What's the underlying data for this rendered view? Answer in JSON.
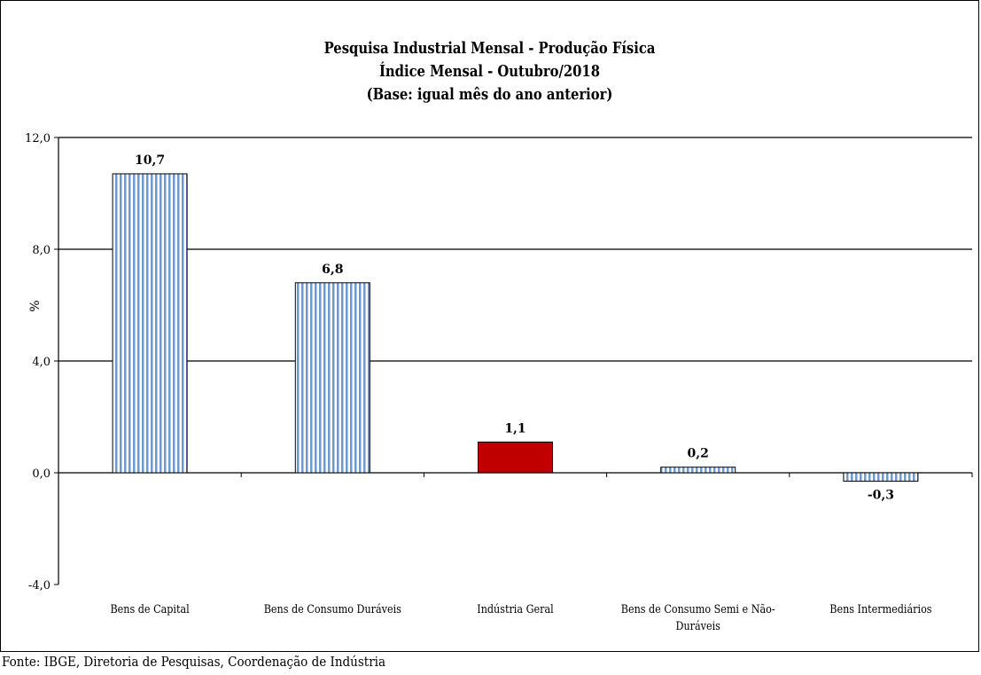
{
  "chart_data": {
    "type": "bar",
    "title": "Pesquisa Industrial Mensal - Produção Física",
    "subtitle": "Índice Mensal - Outubro/2018",
    "subtitle2": "(Base: igual mês do ano anterior)",
    "xlabel": "",
    "ylabel": "%",
    "ylim": [
      -4.0,
      12.0
    ],
    "yticks": [
      "12,0",
      "8,0",
      "4,0",
      "0,0",
      "-4,0"
    ],
    "ytick_values": [
      12,
      8,
      4,
      0,
      -4
    ],
    "categories": [
      "Bens de Capital",
      "Bens de Consumo Duráveis",
      "Indústria Geral",
      "Bens de Consumo Semi e Não-Duráveis",
      "Bens Intermediários"
    ],
    "category_lines": [
      [
        "Bens de Capital"
      ],
      [
        "Bens de Consumo Duráveis"
      ],
      [
        "Indústria Geral"
      ],
      [
        "Bens de Consumo Semi e Não-",
        "Duráveis"
      ],
      [
        "Bens Intermediários"
      ]
    ],
    "values": [
      10.7,
      6.8,
      1.1,
      0.2,
      -0.3
    ],
    "value_labels": [
      "10,7",
      "6,8",
      "1,1",
      "0,2",
      "-0,3"
    ],
    "highlight_index": 2,
    "grid": true,
    "legend": "none",
    "colors": {
      "bar_stripe": "#6f9ad0",
      "bar_highlight": "#c00000",
      "grid": "#000000"
    }
  },
  "source": "Fonte: IBGE, Diretoria de Pesquisas, Coordenação de Indústria"
}
